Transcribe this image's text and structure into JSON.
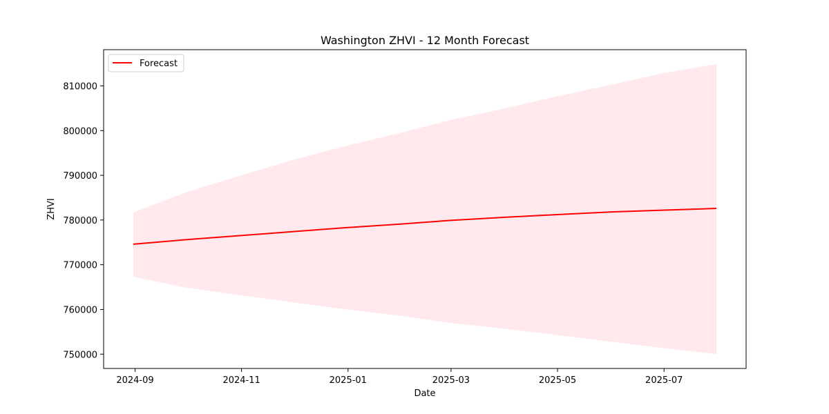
{
  "chart_data": {
    "type": "line",
    "title": "Washington ZHVI - 12 Month Forecast",
    "xlabel": "Date",
    "ylabel": "ZHVI",
    "x": [
      "2024-08-31",
      "2024-09-30",
      "2024-10-31",
      "2024-11-30",
      "2024-12-31",
      "2025-01-31",
      "2025-02-28",
      "2025-03-31",
      "2025-04-30",
      "2025-05-31",
      "2025-06-30",
      "2025-07-31"
    ],
    "series": [
      {
        "name": "Forecast",
        "color": "#ff0000",
        "values": [
          774600,
          775600,
          776500,
          777400,
          778300,
          779100,
          779900,
          780600,
          781200,
          781800,
          782200,
          782600
        ]
      }
    ],
    "band": {
      "color": "#ffc0cb",
      "upper": [
        781700,
        786200,
        789900,
        793400,
        796600,
        799500,
        802300,
        804900,
        807600,
        810200,
        812800,
        814900
      ],
      "lower": [
        767300,
        764900,
        763200,
        761600,
        760000,
        758600,
        757000,
        755700,
        754300,
        752800,
        751400,
        750000
      ]
    },
    "xticks": [
      "2024-09",
      "2024-11",
      "2025-01",
      "2025-03",
      "2025-05",
      "2025-07"
    ],
    "yticks": [
      750000,
      760000,
      770000,
      780000,
      790000,
      800000,
      810000
    ],
    "xlim": [
      "2024-08-14",
      "2025-08-17"
    ],
    "ylim": [
      746800,
      818100
    ],
    "grid": false,
    "legend": "top-left"
  }
}
